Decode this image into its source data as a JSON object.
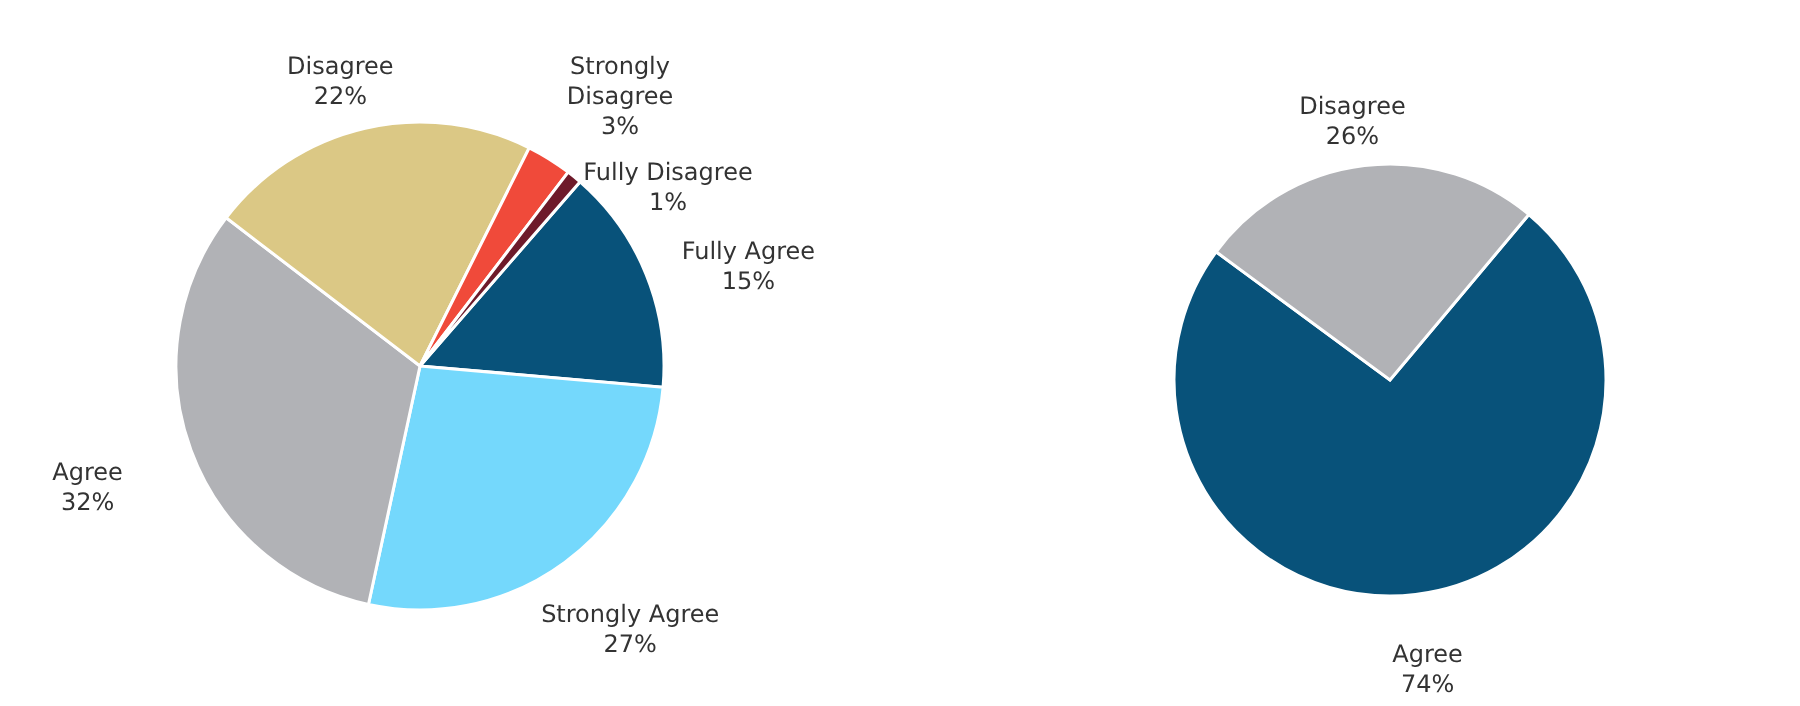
{
  "chart_data": [
    {
      "type": "pie",
      "categories": [
        "Fully Agree",
        "Strongly Agree",
        "Agree",
        "Disagree",
        "Strongly Disagree",
        "Fully Disagree"
      ],
      "values": [
        15,
        27,
        32,
        22,
        3,
        1
      ],
      "colors": [
        "#08527a",
        "#74d8fc",
        "#b1b2b6",
        "#dbc885",
        "#f04a3a",
        "#6e1a2a"
      ],
      "data_labels": true,
      "value_labels": [
        "15%",
        "27%",
        "32%",
        "22%",
        "3%",
        "1%"
      ]
    },
    {
      "type": "pie",
      "categories": [
        "Agree",
        "Disagree"
      ],
      "values": [
        74,
        26
      ],
      "colors": [
        "#08527a",
        "#b1b2b6"
      ],
      "data_labels": true,
      "value_labels": [
        "74%",
        "26%"
      ]
    }
  ]
}
